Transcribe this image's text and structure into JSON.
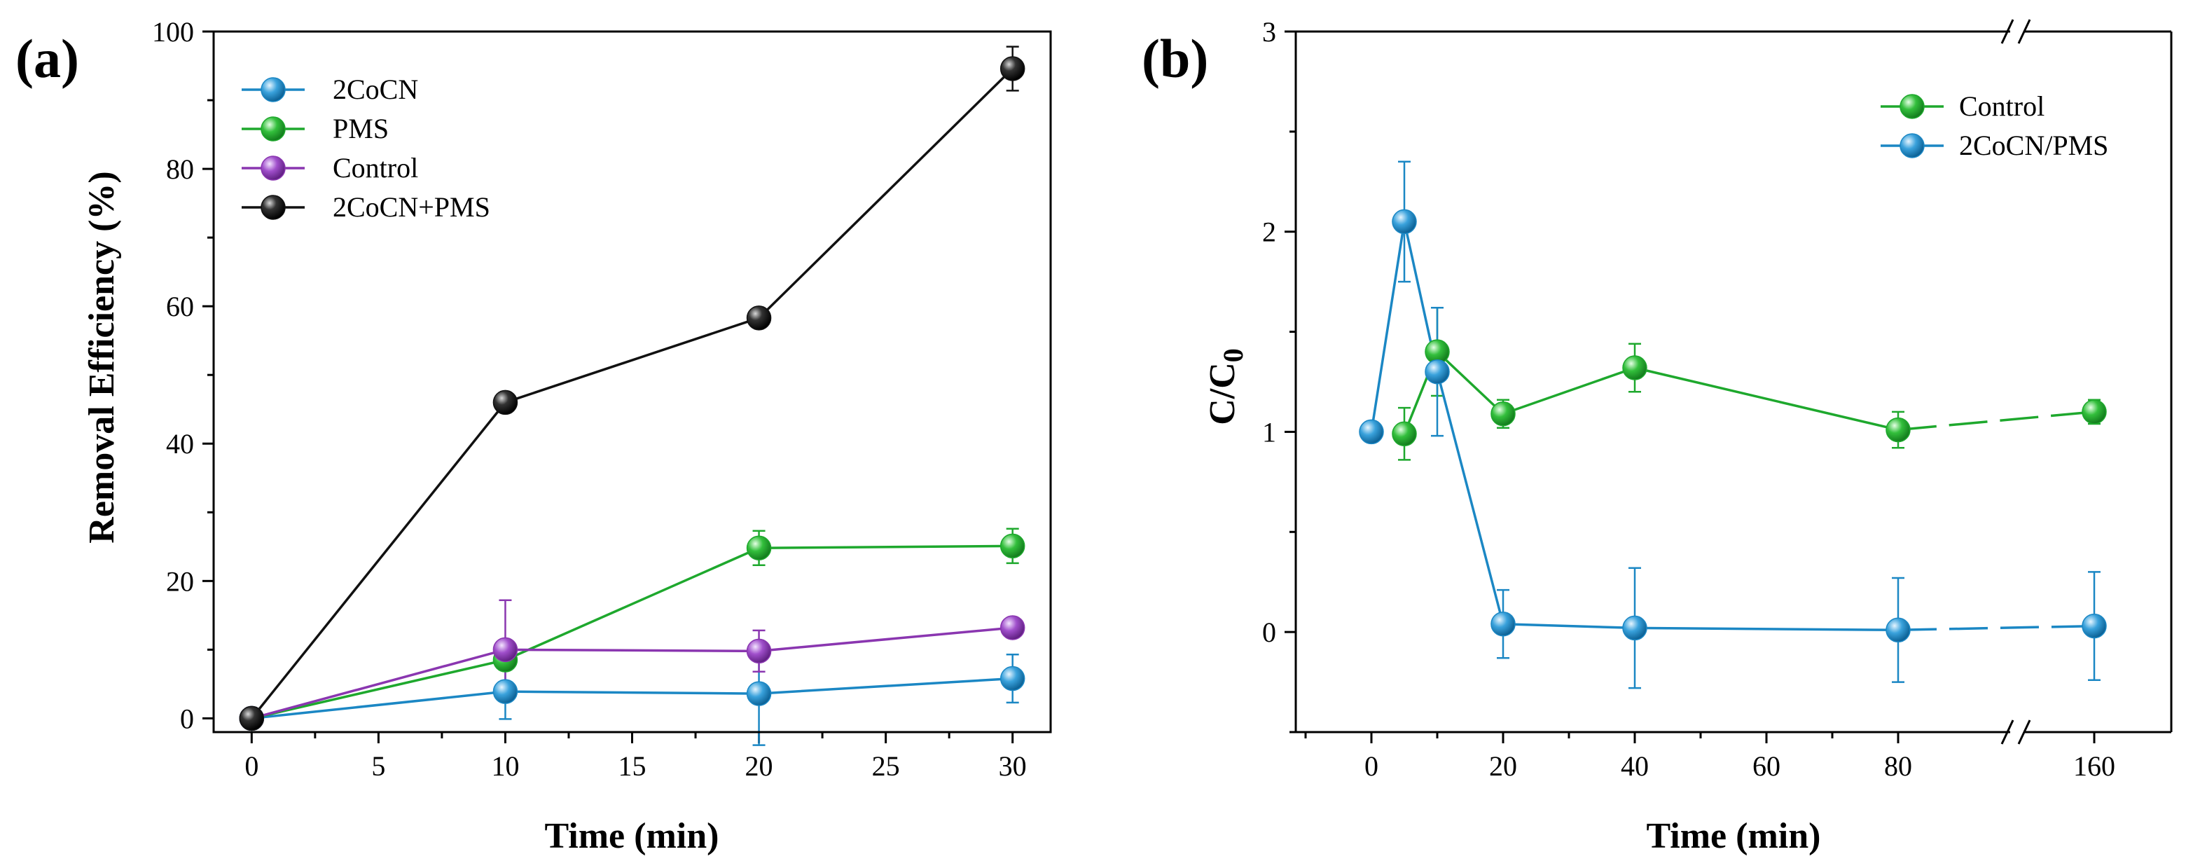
{
  "figure": {
    "panels": [
      {
        "label": "(a)",
        "xlabel": "Time (min)",
        "ylabel": "Removal Efficiency (%)"
      },
      {
        "label": "(b)",
        "xlabel": "Time (min)",
        "ylabel_main": "C/C",
        "ylabel_sub": "0"
      }
    ]
  },
  "colors": {
    "blue": "#1b87c4",
    "green": "#1ea82d",
    "purple": "#8a36b0",
    "black": "#111111"
  },
  "chart_data": [
    {
      "type": "line",
      "title": "",
      "xlabel": "Time (min)",
      "ylabel": "Removal Efficiency (%)",
      "xlim": [
        -1.5,
        31.5
      ],
      "ylim": [
        -2,
        100
      ],
      "xticks": [
        0,
        5,
        10,
        15,
        20,
        25,
        30
      ],
      "yticks": [
        0,
        20,
        40,
        60,
        80,
        100
      ],
      "grid": false,
      "legend_position": "top-left",
      "series": [
        {
          "name": "2CoCN",
          "color": "#1b87c4",
          "x": [
            0,
            10,
            20,
            30
          ],
          "y": [
            0,
            3.9,
            3.6,
            5.8
          ],
          "err": [
            0,
            4.0,
            7.5,
            3.5
          ]
        },
        {
          "name": "PMS",
          "color": "#1ea82d",
          "x": [
            0,
            10,
            20,
            30
          ],
          "y": [
            0,
            8.5,
            24.8,
            25.1
          ],
          "err": [
            0,
            0,
            2.5,
            2.5
          ]
        },
        {
          "name": "Control",
          "color": "#8a36b0",
          "x": [
            0,
            10,
            20,
            30
          ],
          "y": [
            0,
            10.0,
            9.8,
            13.2
          ],
          "err": [
            0,
            7.2,
            3.0,
            1.0
          ]
        },
        {
          "name": "2CoCN+PMS",
          "color": "#111111",
          "x": [
            0,
            10,
            20,
            30
          ],
          "y": [
            0,
            46.0,
            58.3,
            94.6
          ],
          "err": [
            0,
            0,
            0,
            3.2
          ]
        }
      ]
    },
    {
      "type": "line",
      "title": "",
      "xlabel": "Time (min)",
      "ylabel": "C/C0",
      "x_axis_break": "between 80 and 160",
      "xticks": [
        0,
        20,
        40,
        60,
        80,
        160
      ],
      "yticks": [
        0,
        1,
        2,
        3
      ],
      "ylim": [
        -0.5,
        3
      ],
      "grid": false,
      "legend_position": "top-right",
      "series": [
        {
          "name": "Control",
          "color": "#1ea82d",
          "x": [
            5,
            10,
            20,
            40,
            80,
            160
          ],
          "y": [
            0.99,
            1.4,
            1.09,
            1.32,
            1.01,
            1.1
          ],
          "err": [
            0.13,
            0.22,
            0.07,
            0.12,
            0.09,
            0.06
          ]
        },
        {
          "name": "2CoCN/PMS",
          "color": "#1b87c4",
          "x": [
            0,
            5,
            10,
            20,
            40,
            80,
            160
          ],
          "y": [
            1.0,
            2.05,
            1.3,
            0.04,
            0.02,
            0.01,
            0.03
          ],
          "err": [
            0,
            0.3,
            0.32,
            0.17,
            0.3,
            0.26,
            0.27
          ]
        }
      ]
    }
  ]
}
